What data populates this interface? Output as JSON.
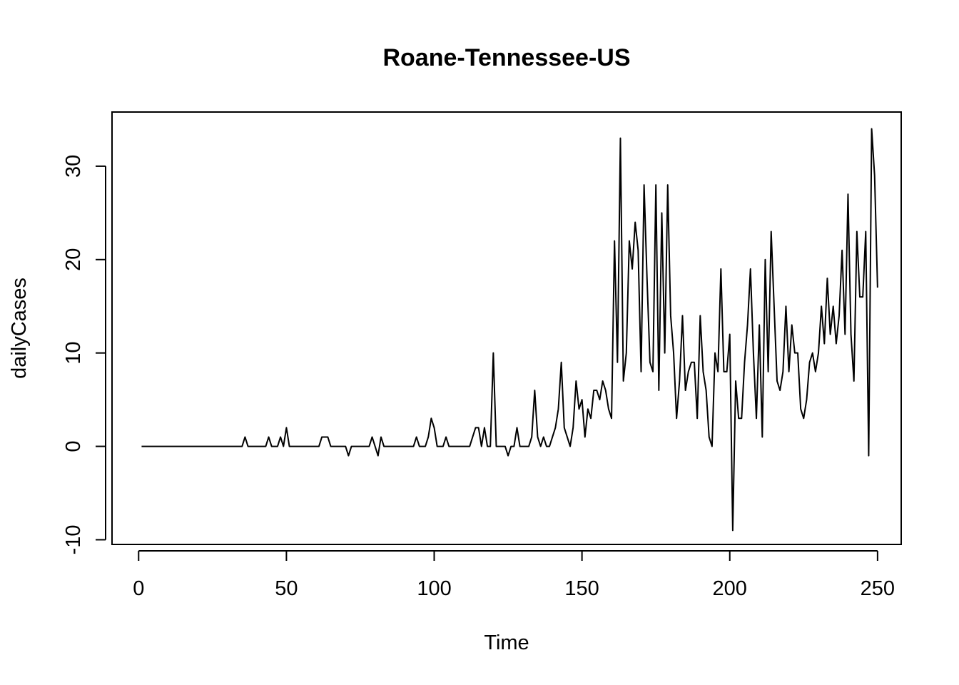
{
  "chart_data": {
    "type": "line",
    "title": "Roane-Tennessee-US",
    "xlabel": "Time",
    "ylabel": "dailyCases",
    "xlim": [
      -9,
      258
    ],
    "ylim": [
      -10.5,
      35.8
    ],
    "x_ticks": [
      0,
      50,
      100,
      150,
      200,
      250
    ],
    "y_ticks": [
      -10,
      0,
      10,
      20,
      30
    ],
    "grid": false,
    "legend": "none",
    "line_color": "#000000",
    "series": [
      {
        "x_start": 1,
        "values": [
          0,
          0,
          0,
          0,
          0,
          0,
          0,
          0,
          0,
          0,
          0,
          0,
          0,
          0,
          0,
          0,
          0,
          0,
          0,
          0,
          0,
          0,
          0,
          0,
          0,
          0,
          0,
          0,
          0,
          0,
          0,
          0,
          0,
          0,
          0,
          1,
          0,
          0,
          0,
          0,
          0,
          0,
          0,
          1,
          0,
          0,
          0,
          1,
          0,
          2,
          0,
          0,
          0,
          0,
          0,
          0,
          0,
          0,
          0,
          0,
          0,
          1,
          1,
          1,
          0,
          0,
          0,
          0,
          0,
          0,
          -1,
          0,
          0,
          0,
          0,
          0,
          0,
          0,
          1,
          0,
          -1,
          1,
          0,
          0,
          0,
          0,
          0,
          0,
          0,
          0,
          0,
          0,
          0,
          1,
          0,
          0,
          0,
          1,
          3,
          2,
          0,
          0,
          0,
          1,
          0,
          0,
          0,
          0,
          0,
          0,
          0,
          0,
          1,
          2,
          2,
          0,
          2,
          0,
          0,
          10,
          0,
          0,
          0,
          0,
          -1,
          0,
          0,
          2,
          0,
          0,
          0,
          0,
          1,
          6,
          1,
          0,
          1,
          0,
          0,
          1,
          2,
          4,
          9,
          2,
          1,
          0,
          2,
          7,
          4,
          5,
          1,
          4,
          3,
          6,
          6,
          5,
          7,
          6,
          4,
          3,
          22,
          9,
          33,
          7,
          10,
          22,
          19,
          24,
          21,
          8,
          28,
          18,
          9,
          8,
          28,
          6,
          25,
          10,
          28,
          14,
          10,
          3,
          7,
          14,
          6,
          8,
          9,
          9,
          3,
          14,
          8,
          6,
          1,
          0,
          10,
          8,
          19,
          8,
          8,
          12,
          -9,
          7,
          3,
          3,
          9,
          13,
          19,
          10,
          3,
          13,
          1,
          20,
          8,
          23,
          15,
          7,
          6,
          8,
          15,
          8,
          13,
          10,
          10,
          4,
          3,
          5,
          9,
          10,
          8,
          10,
          15,
          11,
          18,
          12,
          15,
          11,
          14,
          21,
          12,
          27,
          12,
          7,
          23,
          16,
          16,
          23,
          -1,
          34,
          29,
          17
        ]
      }
    ]
  }
}
